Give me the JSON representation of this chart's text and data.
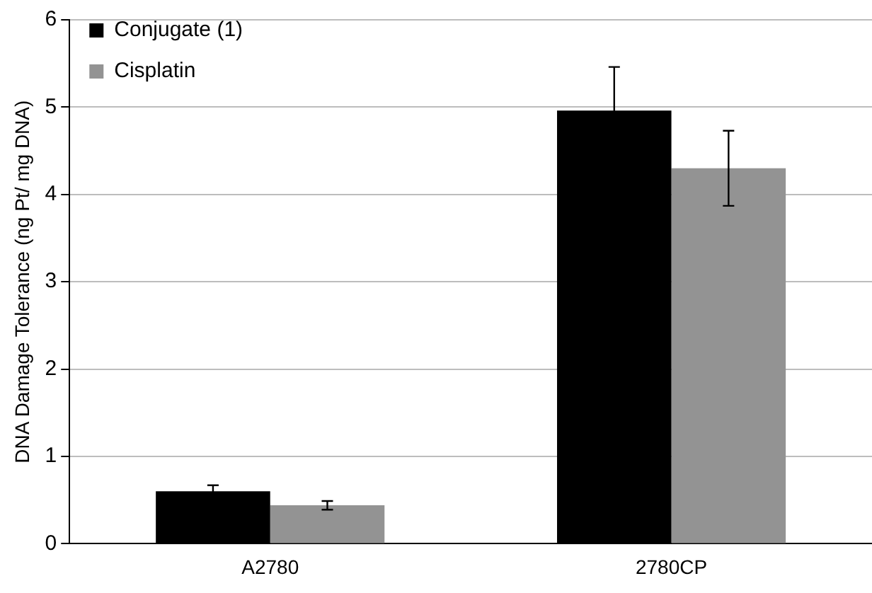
{
  "chart_data": {
    "type": "bar",
    "ylabel": "DNA Damage Tolerance (ng Pt/ mg DNA)",
    "categories": [
      "A2780",
      "2780CP"
    ],
    "series": [
      {
        "name": "Conjugate (1)",
        "color": "#000000",
        "values": [
          0.6,
          4.96
        ],
        "errors": [
          0.07,
          0.5
        ]
      },
      {
        "name": "Cisplatin",
        "color": "#939393",
        "values": [
          0.44,
          4.3
        ],
        "errors": [
          0.05,
          0.43
        ]
      }
    ],
    "ylim": [
      0,
      6
    ],
    "yticks": [
      0,
      1,
      2,
      3,
      4,
      5,
      6
    ],
    "grid": "y",
    "legend": "top left"
  }
}
